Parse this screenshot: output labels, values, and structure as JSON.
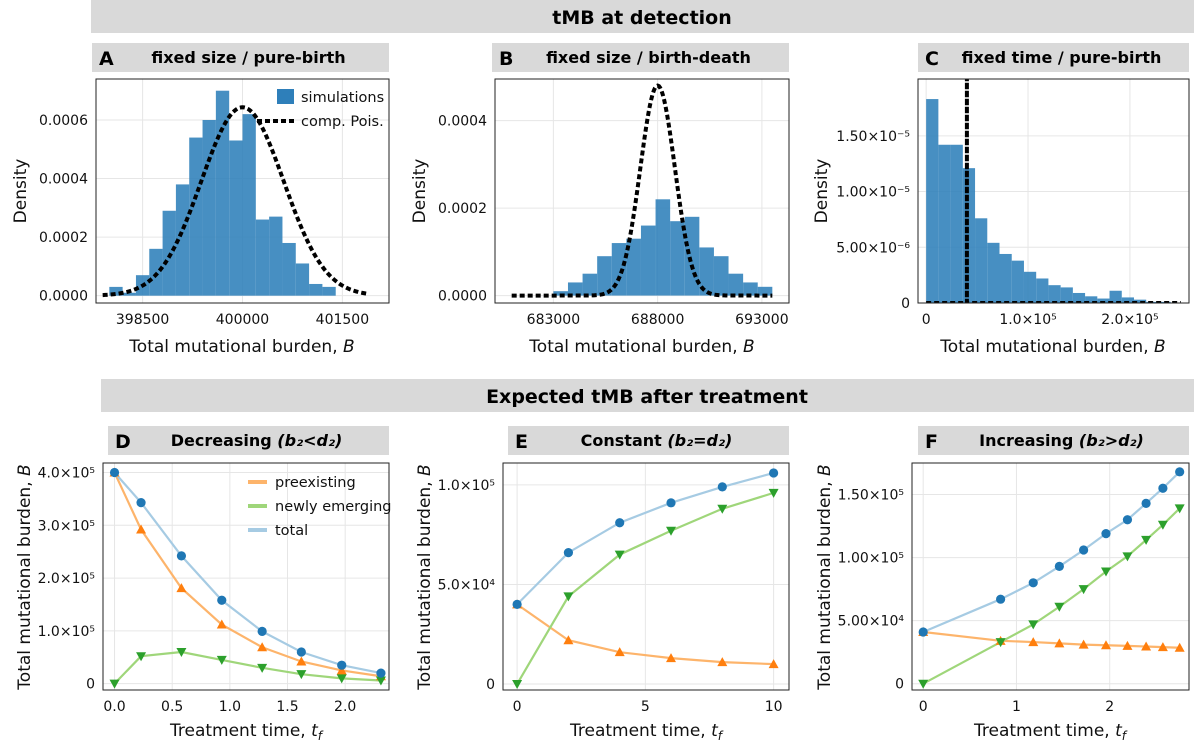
{
  "banners": {
    "top": "tMB at detection",
    "bottom": "Expected tMB after treatment"
  },
  "colors": {
    "hist": "#2e7fba",
    "preexisting": "#ff7f0e",
    "newly": "#2ca02c",
    "total": "#1f77b4",
    "line_pre": "#fdb46b",
    "line_new": "#9fd67a",
    "line_total": "#a6cbe3",
    "banner_bg": "#d9d9d9"
  },
  "chart_data": [
    {
      "id": "A",
      "letter": "A",
      "title": "fixed size / pure-birth",
      "type": "bar",
      "xlabel": "Total mutational burden,",
      "xlabel_var": "B",
      "ylabel": "Density",
      "xlim": [
        397800,
        402200
      ],
      "ylim": [
        -2.5e-05,
        0.00074
      ],
      "xticks": [
        398500,
        400000,
        401500
      ],
      "xtick_labels": [
        "398500",
        "400000",
        "401500"
      ],
      "yticks": [
        0,
        0.0002,
        0.0004,
        0.0006
      ],
      "ytick_labels": [
        "0.0000",
        "0.0002",
        "0.0004",
        "0.0006"
      ],
      "grid": true,
      "legend_position": "top-right",
      "bin_edges": [
        398000,
        398200,
        398400,
        398600,
        398800,
        399000,
        399200,
        399400,
        399600,
        399800,
        400000,
        400200,
        400400,
        400600,
        400800,
        401000,
        401200,
        401400
      ],
      "bin_values": [
        3e-05,
        1e-05,
        7e-05,
        0.00016,
        0.00029,
        0.00038,
        0.00054,
        0.0006,
        0.0007,
        0.00053,
        0.00062,
        0.00026,
        0.00027,
        0.00018,
        0.00011,
        4e-05,
        3e-05
      ],
      "curve_mean": 400000,
      "curve_sd": 620,
      "curve_x_range": [
        397900,
        401900
      ],
      "legend": [
        "simulations",
        "comp. Pois."
      ]
    },
    {
      "id": "B",
      "letter": "B",
      "title": "fixed size / birth-death",
      "type": "bar",
      "xlabel": "Total mutational burden,",
      "xlabel_var": "B",
      "ylabel": "Density",
      "xlim": [
        680200,
        694300
      ],
      "ylim": [
        -1.7e-05,
        0.000495
      ],
      "xticks": [
        683000,
        688000,
        693000
      ],
      "xtick_labels": [
        "683000",
        "688000",
        "693000"
      ],
      "yticks": [
        0,
        0.0002,
        0.0004
      ],
      "ytick_labels": [
        "0.0000",
        "0.0002",
        "0.0004"
      ],
      "grid": true,
      "bin_edges": [
        683000,
        683700,
        684400,
        685100,
        685800,
        686500,
        687200,
        687900,
        688600,
        689300,
        690000,
        690700,
        691400,
        692100,
        692800,
        693500
      ],
      "bin_values": [
        1e-05,
        3e-05,
        5e-05,
        9e-05,
        0.00012,
        0.00013,
        0.00016,
        0.00022,
        0.00017,
        0.00018,
        0.00011,
        9e-05,
        5e-05,
        3e-05,
        2e-05
      ],
      "curve_mean": 688000,
      "curve_sd": 830,
      "curve_x_range": [
        681000,
        693500
      ],
      "curve_peak": 0.00048
    },
    {
      "id": "C",
      "letter": "C",
      "title": "fixed time / pure-birth",
      "type": "bar",
      "xlabel": "Total mutational burden,",
      "xlabel_var": "B",
      "ylabel": "Density",
      "xlim": [
        -8000,
        258000
      ],
      "ylim": [
        0,
        2.01e-05
      ],
      "xticks": [
        0,
        100000,
        200000
      ],
      "xtick_labels": [
        "0",
        "1.0×10⁵",
        "2.0×10⁵"
      ],
      "yticks": [
        0,
        5e-06,
        1e-05,
        1.5e-05
      ],
      "ytick_labels": [
        "0",
        "5.00×10⁻⁶",
        "1.00×10⁻⁵",
        "1.50×10⁻⁵"
      ],
      "grid": true,
      "bin_edges": [
        0,
        12000,
        24000,
        36000,
        48000,
        60000,
        72000,
        84000,
        96000,
        108000,
        120000,
        132000,
        144000,
        156000,
        168000,
        180000,
        192000,
        204000,
        216000,
        228000,
        240000
      ],
      "bin_values": [
        1.83e-05,
        1.42e-05,
        1.42e-05,
        1.21e-05,
        7.6e-06,
        5.4e-06,
        4.4e-06,
        3.8e-06,
        2.8e-06,
        2.2e-06,
        1.6e-06,
        1.4e-06,
        9e-07,
        6e-07,
        4e-07,
        1.1e-06,
        5e-07,
        3e-07,
        1e-07,
        1e-07
      ],
      "spike_x": 40000,
      "curve_x_range": [
        0,
        250000
      ]
    },
    {
      "id": "D",
      "letter": "D",
      "title": "Decreasing",
      "title_math": "b₂<d₂",
      "type": "line",
      "xlabel": "Treatment time,",
      "xlabel_var": "t_f",
      "ylabel": "Total mutational burden,",
      "ylabel_var": "B",
      "xlim": [
        -0.1,
        2.38
      ],
      "ylim": [
        -12000,
        418000
      ],
      "xticks": [
        0,
        0.5,
        1,
        1.5,
        2
      ],
      "xtick_labels": [
        "0.0",
        "0.5",
        "1.0",
        "1.5",
        "2.0"
      ],
      "yticks": [
        0,
        100000,
        200000,
        300000,
        400000
      ],
      "ytick_labels": [
        "0",
        "1.0×10⁵",
        "2.0×10⁵",
        "3.0×10⁵",
        "4.0×10⁵"
      ],
      "grid": true,
      "legend_position": "top-right",
      "legend": [
        "preexisting",
        "newly emerging",
        "total"
      ],
      "x": [
        0,
        0.23,
        0.58,
        0.93,
        1.28,
        1.62,
        1.97,
        2.31
      ],
      "series": [
        {
          "name": "preexisting",
          "values": [
            400000,
            292000,
            181000,
            112000,
            69000,
            42000,
            25000,
            14000
          ]
        },
        {
          "name": "newly emerging",
          "values": [
            0,
            52000,
            60000,
            45000,
            30000,
            18000,
            10000,
            6000
          ]
        },
        {
          "name": "total",
          "values": [
            400000,
            343000,
            242000,
            158000,
            99000,
            60000,
            35000,
            20000
          ]
        }
      ]
    },
    {
      "id": "E",
      "letter": "E",
      "title": "Constant",
      "title_math": "b₂=d₂",
      "type": "line",
      "xlabel": "Treatment time,",
      "xlabel_var": "t_f",
      "ylabel": "Total mutational burden,",
      "ylabel_var": "B",
      "xlim": [
        -0.55,
        10.6
      ],
      "ylim": [
        -3000,
        111000
      ],
      "xticks": [
        0,
        5,
        10
      ],
      "xtick_labels": [
        "0",
        "5",
        "10"
      ],
      "yticks": [
        0,
        50000,
        100000
      ],
      "ytick_labels": [
        "0",
        "5.0×10⁴",
        "1.0×10⁵"
      ],
      "grid": true,
      "x": [
        0,
        2,
        4,
        6,
        8,
        10
      ],
      "series": [
        {
          "name": "preexisting",
          "values": [
            40000,
            22000,
            16000,
            13000,
            11000,
            10000
          ]
        },
        {
          "name": "newly emerging",
          "values": [
            0,
            44000,
            65000,
            77000,
            88000,
            96000
          ]
        },
        {
          "name": "total",
          "values": [
            40000,
            66000,
            81000,
            91000,
            99000,
            106000
          ]
        }
      ]
    },
    {
      "id": "F",
      "letter": "F",
      "title": "Increasing",
      "title_math": "b₂>d₂",
      "type": "line",
      "xlabel": "Treatment time,",
      "xlabel_var": "t_f",
      "ylabel": "Total mutational burden,",
      "ylabel_var": "B",
      "xlim": [
        -0.12,
        2.85
      ],
      "ylim": [
        -5000,
        175000
      ],
      "xticks": [
        0,
        1,
        2
      ],
      "xtick_labels": [
        "0",
        "1",
        "2"
      ],
      "yticks": [
        0,
        50000,
        100000,
        150000
      ],
      "ytick_labels": [
        "0",
        "5.00×10⁴",
        "1.00×10⁵",
        "1.50×10⁵"
      ],
      "grid": true,
      "x": [
        0,
        0.83,
        1.18,
        1.46,
        1.72,
        1.96,
        2.19,
        2.39,
        2.57,
        2.75
      ],
      "series": [
        {
          "name": "preexisting",
          "values": [
            41000,
            34000,
            33000,
            32000,
            31000,
            30500,
            30000,
            29500,
            29000,
            28500
          ]
        },
        {
          "name": "newly emerging",
          "values": [
            0,
            33000,
            47000,
            61000,
            75000,
            89000,
            101000,
            114000,
            126000,
            139000
          ]
        },
        {
          "name": "total",
          "values": [
            41000,
            67000,
            80000,
            93000,
            106000,
            119000,
            130000,
            143000,
            155000,
            168000
          ]
        }
      ]
    }
  ]
}
